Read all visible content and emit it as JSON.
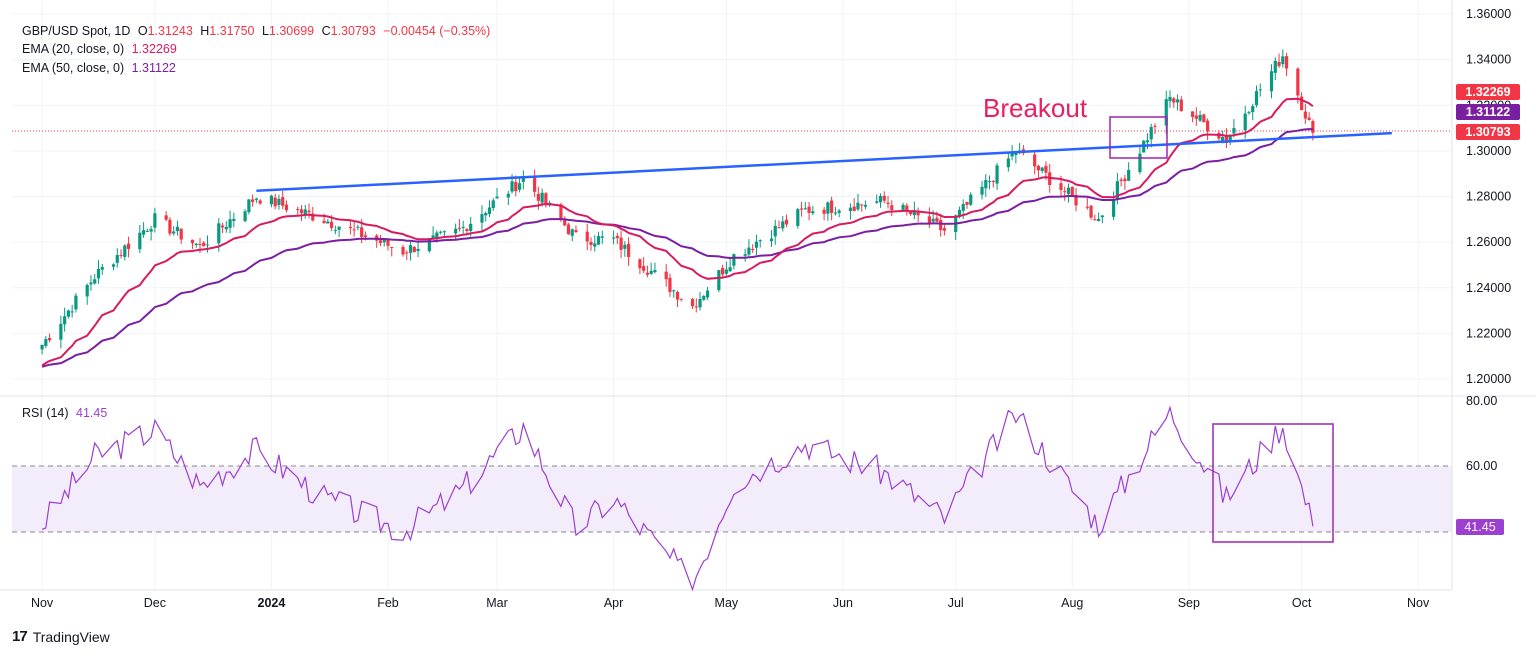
{
  "header": {
    "symbol": "GBP/USD Spot, 1D",
    "o_label": "O",
    "o": "1.31243",
    "h_label": "H",
    "h": "1.31750",
    "l_label": "L",
    "l": "1.30699",
    "c_label": "C",
    "c": "1.30793",
    "change": "−0.00454 (−0.35%)",
    "ema20_label": "EMA (20, close, 0)",
    "ema20": "1.32269",
    "ema50_label": "EMA (50, close, 0)",
    "ema50": "1.31122"
  },
  "rsi": {
    "label": "RSI (14)",
    "value": "41.45"
  },
  "annotation": {
    "breakout": "Breakout"
  },
  "brand": {
    "name": "TradingView"
  },
  "colors": {
    "up": "#089981",
    "down": "#f23645",
    "ema20": "#d81b60",
    "ema50": "#7b1fa2",
    "trend": "#2962ff",
    "rsi": "#9c3fd0",
    "box": "#9c27b0"
  },
  "chart_data": {
    "type": "candlestick",
    "price_axis": {
      "min": 1.19,
      "max": 1.36,
      "ticks": [
        "1.36000",
        "1.34000",
        "1.32000",
        "1.30000",
        "1.28000",
        "1.26000",
        "1.24000",
        "1.22000",
        "1.20000"
      ]
    },
    "rsi_axis": {
      "min": 20,
      "max": 80,
      "ticks": [
        "80.00",
        "60.00"
      ],
      "bands": [
        60,
        40
      ]
    },
    "x_labels": [
      "Nov",
      "Dec",
      "2024",
      "Feb",
      "Mar",
      "Apr",
      "May",
      "Jun",
      "Jul",
      "Aug",
      "Sep",
      "Oct",
      "Nov"
    ],
    "price_tags": [
      {
        "value": "1.32269",
        "color": "#f23645"
      },
      {
        "value": "1.31122",
        "color": "#7b1fa2"
      },
      {
        "value": "1.30793",
        "color": "#f23645"
      }
    ],
    "rsi_tag": "41.45",
    "key_points": [
      {
        "date": "2023-11-01",
        "close": 1.215
      },
      {
        "date": "2023-11-15",
        "close": 1.245
      },
      {
        "date": "2023-12-01",
        "close": 1.27
      },
      {
        "date": "2023-12-13",
        "close": 1.258
      },
      {
        "date": "2023-12-28",
        "close": 1.28
      },
      {
        "date": "2024-01-15",
        "close": 1.27
      },
      {
        "date": "2024-02-05",
        "close": 1.256
      },
      {
        "date": "2024-02-20",
        "close": 1.265
      },
      {
        "date": "2024-03-08",
        "close": 1.288
      },
      {
        "date": "2024-03-22",
        "close": 1.262
      },
      {
        "date": "2024-04-01",
        "close": 1.261
      },
      {
        "date": "2024-04-22",
        "close": 1.232
      },
      {
        "date": "2024-05-03",
        "close": 1.254
      },
      {
        "date": "2024-05-22",
        "close": 1.274
      },
      {
        "date": "2024-06-12",
        "close": 1.278
      },
      {
        "date": "2024-06-28",
        "close": 1.265
      },
      {
        "date": "2024-07-17",
        "close": 1.3
      },
      {
        "date": "2024-08-08",
        "close": 1.27
      },
      {
        "date": "2024-08-27",
        "close": 1.323
      },
      {
        "date": "2024-09-11",
        "close": 1.305
      },
      {
        "date": "2024-09-26",
        "close": 1.342
      },
      {
        "date": "2024-10-04",
        "close": 1.3079
      }
    ],
    "rsi_points": [
      {
        "date": "2023-11-01",
        "rsi": 42
      },
      {
        "date": "2023-11-15",
        "rsi": 63
      },
      {
        "date": "2023-12-01",
        "rsi": 71
      },
      {
        "date": "2023-12-13",
        "rsi": 54
      },
      {
        "date": "2023-12-28",
        "rsi": 65
      },
      {
        "date": "2024-01-15",
        "rsi": 50
      },
      {
        "date": "2024-02-05",
        "rsi": 40
      },
      {
        "date": "2024-02-20",
        "rsi": 52
      },
      {
        "date": "2024-03-08",
        "rsi": 72
      },
      {
        "date": "2024-03-22",
        "rsi": 41
      },
      {
        "date": "2024-04-01",
        "rsi": 50
      },
      {
        "date": "2024-04-22",
        "rsi": 24
      },
      {
        "date": "2024-05-03",
        "rsi": 55
      },
      {
        "date": "2024-05-22",
        "rsi": 67
      },
      {
        "date": "2024-06-12",
        "rsi": 58
      },
      {
        "date": "2024-06-28",
        "rsi": 44
      },
      {
        "date": "2024-07-17",
        "rsi": 76
      },
      {
        "date": "2024-08-08",
        "rsi": 42
      },
      {
        "date": "2024-08-27",
        "rsi": 77
      },
      {
        "date": "2024-09-11",
        "rsi": 50
      },
      {
        "date": "2024-09-26",
        "rsi": 73
      },
      {
        "date": "2024-10-04",
        "rsi": 41.45
      }
    ],
    "trendline": {
      "from": {
        "date": "2023-12-28",
        "price": 1.2825
      },
      "to": {
        "date": "2024-10-25",
        "price": 1.3078
      }
    }
  }
}
